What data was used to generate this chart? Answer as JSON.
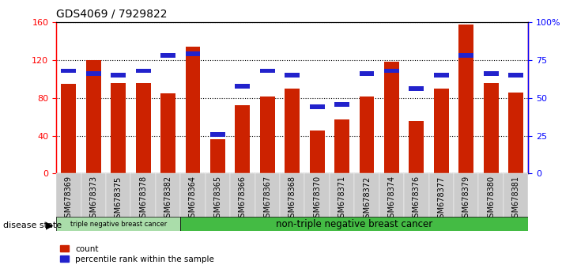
{
  "title": "GDS4069 / 7929822",
  "samples": [
    "GSM678369",
    "GSM678373",
    "GSM678375",
    "GSM678378",
    "GSM678382",
    "GSM678364",
    "GSM678365",
    "GSM678366",
    "GSM678367",
    "GSM678368",
    "GSM678370",
    "GSM678371",
    "GSM678372",
    "GSM678374",
    "GSM678376",
    "GSM678377",
    "GSM678379",
    "GSM678380",
    "GSM678381"
  ],
  "red_values": [
    95,
    120,
    96,
    96,
    85,
    134,
    36,
    72,
    82,
    90,
    46,
    57,
    82,
    118,
    56,
    90,
    158,
    96,
    86
  ],
  "blue_values": [
    68,
    66,
    65,
    68,
    78,
    79,
    26,
    58,
    68,
    65,
    44,
    46,
    66,
    68,
    56,
    65,
    78,
    66,
    65
  ],
  "ylim_left": [
    0,
    160
  ],
  "ylim_right": [
    0,
    100
  ],
  "yticks_left": [
    0,
    40,
    80,
    120,
    160
  ],
  "yticks_right": [
    0,
    25,
    50,
    75,
    100
  ],
  "ytick_labels_right": [
    "0",
    "25",
    "50",
    "75",
    "100%"
  ],
  "group1_label": "triple negative breast cancer",
  "group2_label": "non-triple negative breast cancer",
  "group1_count": 5,
  "group2_count": 14,
  "bar_color": "#cc2200",
  "blue_color": "#2222cc",
  "legend_count": "count",
  "legend_percentile": "percentile rank within the sample",
  "disease_state_label": "disease state",
  "group1_bg": "#aaddaa",
  "group2_bg": "#44bb44",
  "tick_bg": "#cccccc",
  "bar_width": 0.6,
  "title_fontsize": 10,
  "tick_fontsize": 7,
  "legend_fontsize": 7.5
}
